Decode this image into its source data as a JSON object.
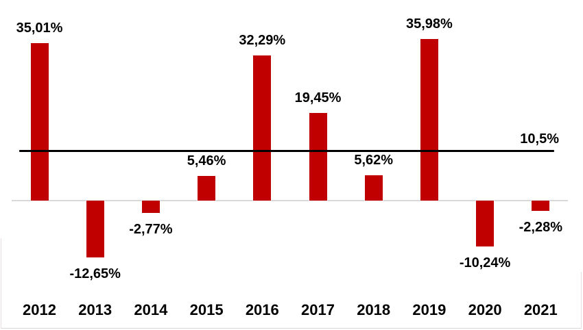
{
  "chart_data": {
    "type": "bar",
    "title": "",
    "xlabel": "",
    "ylabel": "",
    "categories": [
      "2012",
      "2013",
      "2014",
      "2015",
      "2016",
      "2017",
      "2018",
      "2019",
      "2020",
      "2021"
    ],
    "values": [
      35.01,
      -12.65,
      -2.77,
      5.46,
      32.29,
      19.45,
      5.62,
      35.98,
      -10.24,
      -2.28
    ],
    "value_labels": [
      "35,01%",
      "-12,65%",
      "-2,77%",
      "5,46%",
      "32,29%",
      "19,45%",
      "5,62%",
      "35,98%",
      "-10,24%",
      "-2,28%"
    ],
    "series_color": "#C00000",
    "reference_line": {
      "value": 10.5,
      "label": "10,5%",
      "color": "#000000"
    },
    "zero_axis_color": "#D9D9D9",
    "label_color": "#000000",
    "ylim": [
      -15,
      40
    ],
    "grid": false,
    "legend_position": "none"
  }
}
